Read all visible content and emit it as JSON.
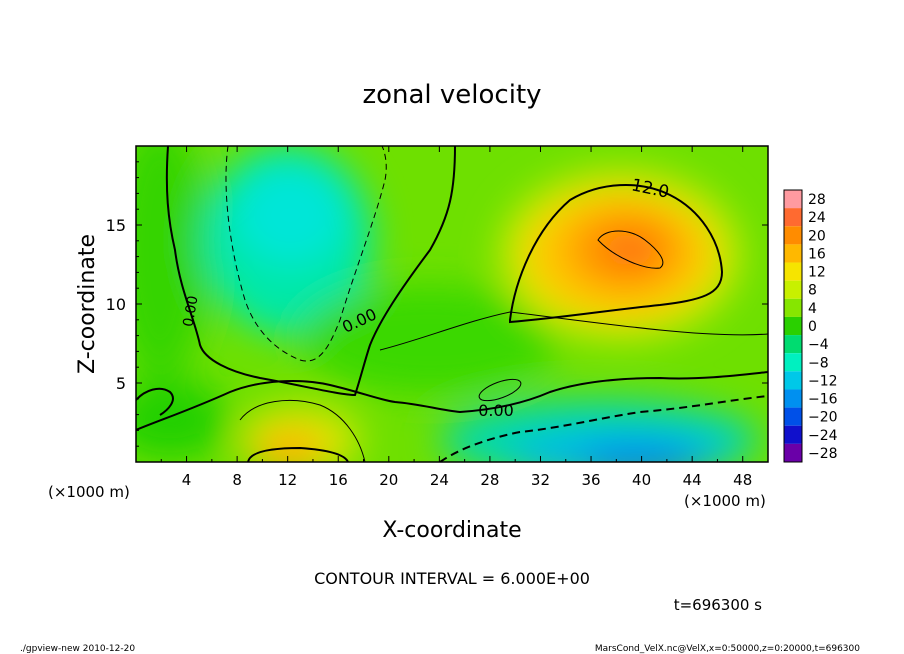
{
  "chart_data": {
    "type": "heatmap",
    "title": "zonal velocity",
    "xlabel": "X-coordinate",
    "ylabel": "Z-coordinate",
    "x_unit": "(×1000 m)",
    "y_unit": "(×1000 m)",
    "xlim": [
      0,
      50
    ],
    "ylim": [
      0,
      20
    ],
    "x_ticks": [
      "4",
      "8",
      "12",
      "16",
      "20",
      "24",
      "28",
      "32",
      "36",
      "40",
      "44",
      "48"
    ],
    "y_ticks": [
      "5",
      "10",
      "15"
    ],
    "contour_labels": [
      "12.0",
      "0.00",
      "0.00",
      "0.00"
    ],
    "contour_interval_text": "CONTOUR INTERVAL = 6.000E+00",
    "time_text": "t=696300 s",
    "colorbar": {
      "levels": [
        "28",
        "24",
        "20",
        "16",
        "12",
        "8",
        "4",
        "0",
        "−4",
        "−8",
        "−12",
        "−16",
        "−20",
        "−24",
        "−28"
      ],
      "colors": [
        "#ff9aa0",
        "#ff6a30",
        "#ff8c00",
        "#ffb800",
        "#f6e400",
        "#c8f000",
        "#86e600",
        "#2ad000",
        "#00dc70",
        "#00f0c0",
        "#00c8e8",
        "#0090f0",
        "#0050e8",
        "#1010cc",
        "#6a00a8"
      ]
    }
  },
  "footer": {
    "left": "./gpview-new  2010-12-20",
    "right": "MarsCond_VelX.nc@VelX,x=0:50000,z=0:20000,t=696300"
  }
}
